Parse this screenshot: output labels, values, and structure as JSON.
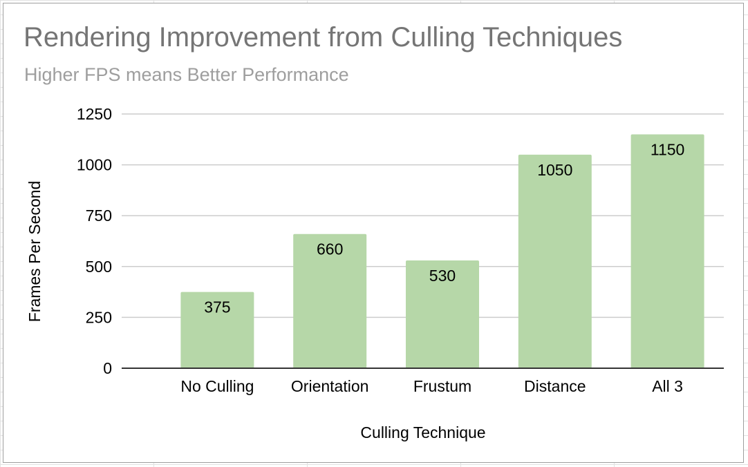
{
  "chart_data": {
    "type": "bar",
    "title": "Rendering Improvement from Culling Techniques",
    "subtitle": "Higher FPS means Better Performance",
    "xlabel": "Culling Technique",
    "ylabel": "Frames Per Second",
    "categories": [
      "No Culling",
      "Orientation",
      "Frustum",
      "Distance",
      "All 3"
    ],
    "values": [
      375,
      660,
      530,
      1050,
      1150
    ],
    "ylim": [
      0,
      1250
    ],
    "yticks": [
      0,
      250,
      500,
      750,
      1000,
      1250
    ],
    "grid": true,
    "legend": "none",
    "data_labels": true,
    "bar_color": "#b6d7a8",
    "grid_color": "#cccccc",
    "axis_color": "#333333"
  }
}
